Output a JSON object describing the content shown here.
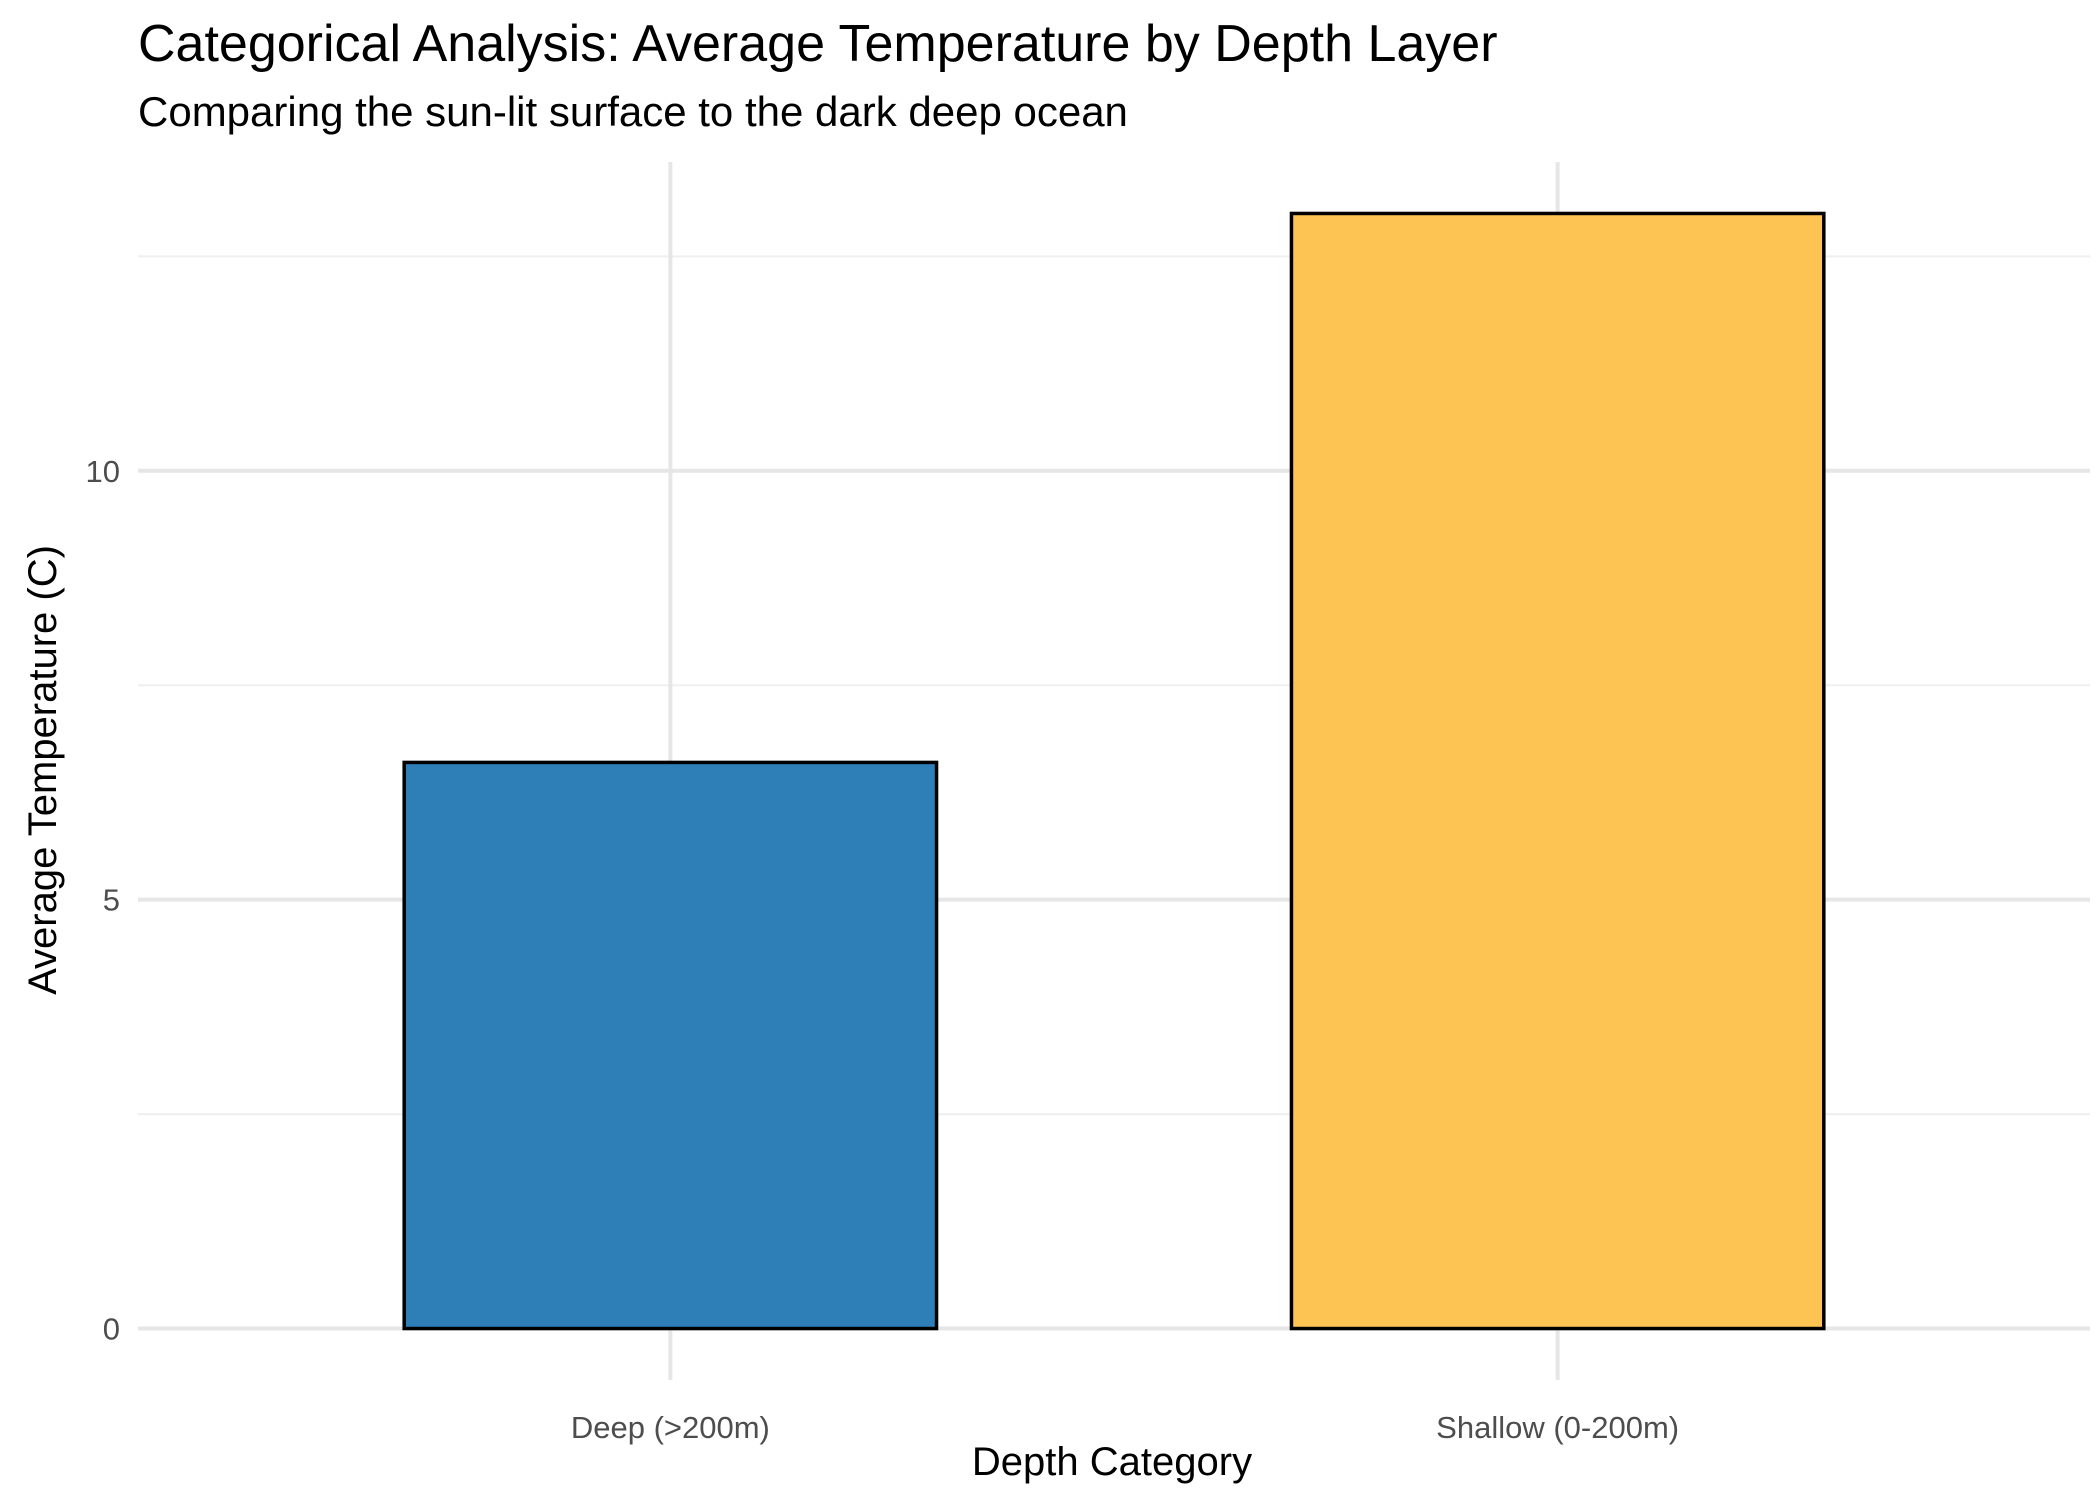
{
  "chart_data": {
    "type": "bar",
    "title": "Categorical Analysis: Average Temperature by Depth Layer",
    "subtitle": "Comparing the sun-lit surface to the dark deep ocean",
    "xlabel": "Depth Category",
    "ylabel": "Average Temperature (C)",
    "categories": [
      "Deep (>200m)",
      "Shallow (0-200m)"
    ],
    "values": [
      6.6,
      13.0
    ],
    "error_bars": [
      0.0,
      0.0
    ],
    "colors": [
      "#2e7eb8",
      "#fdc453"
    ],
    "bar_outline": "#000000",
    "ylim": [
      -0.6,
      13.6
    ],
    "y_ticks": [
      0,
      5,
      10
    ],
    "y_ticks_labels": [
      "0",
      "5",
      "10"
    ],
    "grid": true,
    "legend": "none"
  }
}
